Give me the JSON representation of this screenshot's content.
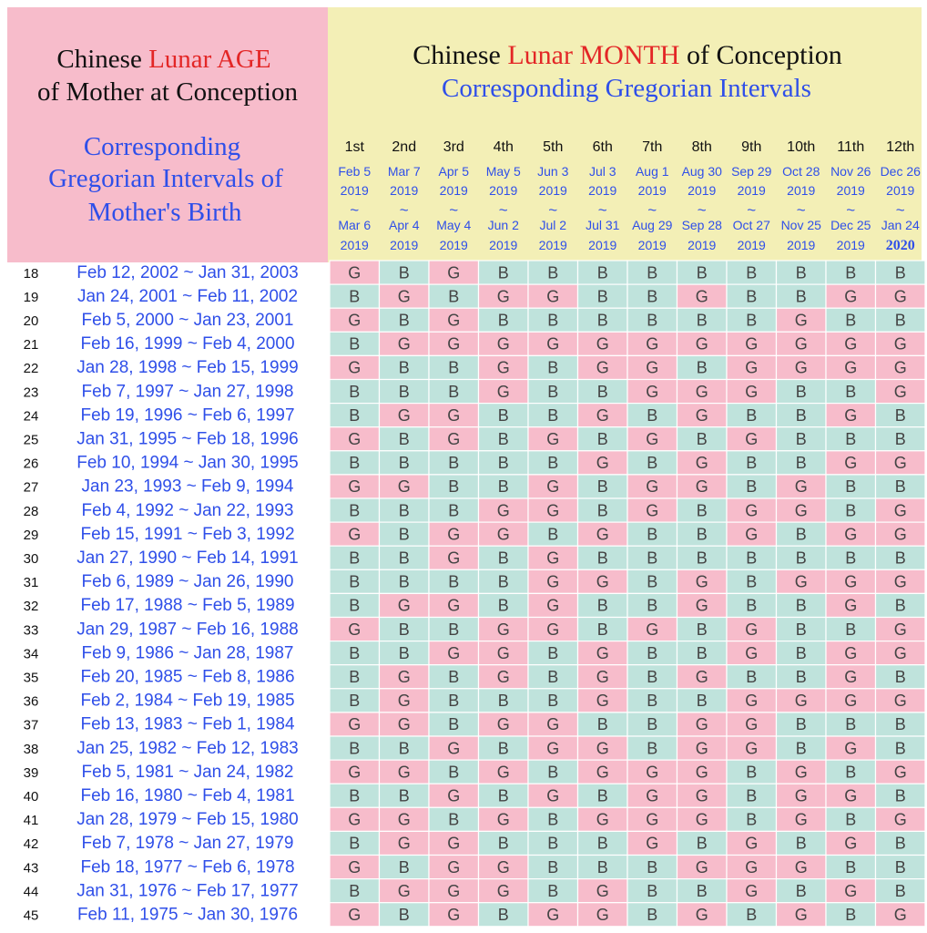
{
  "colors": {
    "left_bg": "#f7bccb",
    "header_bg": "#f3efb6",
    "boy_bg": "#bfe3dc",
    "girl_bg": "#f7bccb",
    "blue_text": "#2f4fe9",
    "red_text": "#e32626",
    "black_text": "#111111",
    "letter_text": "#444444"
  },
  "left_title": {
    "line1_a": "Chinese ",
    "line1_b": "Lunar AGE",
    "line2": "of Mother at Conception"
  },
  "left_subtitle": [
    "Corresponding",
    "Gregorian Intervals of",
    "Mother's Birth"
  ],
  "right_title": {
    "line1_a": "Chinese ",
    "line1_b": "Lunar MONTH",
    "line1_c": " of Conception",
    "line2": "Corresponding Gregorian Intervals"
  },
  "chart_data": {
    "type": "table",
    "months": [
      {
        "label": "1st",
        "start": [
          "Feb 5",
          "2019"
        ],
        "end": [
          "Mar 6",
          "2019"
        ]
      },
      {
        "label": "2nd",
        "start": [
          "Mar 7",
          "2019"
        ],
        "end": [
          "Apr 4",
          "2019"
        ]
      },
      {
        "label": "3rd",
        "start": [
          "Apr 5",
          "2019"
        ],
        "end": [
          "May 4",
          "2019"
        ]
      },
      {
        "label": "4th",
        "start": [
          "May 5",
          "2019"
        ],
        "end": [
          "Jun 2",
          "2019"
        ]
      },
      {
        "label": "5th",
        "start": [
          "Jun 3",
          "2019"
        ],
        "end": [
          "Jul 2",
          "2019"
        ]
      },
      {
        "label": "6th",
        "start": [
          "Jul 3",
          "2019"
        ],
        "end": [
          "Jul 31",
          "2019"
        ]
      },
      {
        "label": "7th",
        "start": [
          "Aug 1",
          "2019"
        ],
        "end": [
          "Aug 29",
          "2019"
        ]
      },
      {
        "label": "8th",
        "start": [
          "Aug 30",
          "2019"
        ],
        "end": [
          "Sep 28",
          "2019"
        ]
      },
      {
        "label": "9th",
        "start": [
          "Sep 29",
          "2019"
        ],
        "end": [
          "Oct 27",
          "2019"
        ]
      },
      {
        "label": "10th",
        "start": [
          "Oct 28",
          "2019"
        ],
        "end": [
          "Nov 25",
          "2019"
        ]
      },
      {
        "label": "11th",
        "start": [
          "Nov 26",
          "2019"
        ],
        "end": [
          "Dec 25",
          "2019"
        ]
      },
      {
        "label": "12th",
        "start": [
          "Dec 26",
          "2019"
        ],
        "end": [
          "Jan 24",
          "2020"
        ]
      }
    ],
    "separator": "~",
    "rows": [
      {
        "age": "18",
        "interval": "Feb 12, 2002 ~ Jan 31, 2003",
        "values": [
          "G",
          "B",
          "G",
          "B",
          "B",
          "B",
          "B",
          "B",
          "B",
          "B",
          "B",
          "B"
        ]
      },
      {
        "age": "19",
        "interval": "Jan 24, 2001 ~ Feb 11, 2002",
        "values": [
          "B",
          "G",
          "B",
          "G",
          "G",
          "B",
          "B",
          "G",
          "B",
          "B",
          "G",
          "G"
        ]
      },
      {
        "age": "20",
        "interval": "Feb 5, 2000 ~ Jan 23, 2001",
        "values": [
          "G",
          "B",
          "G",
          "B",
          "B",
          "B",
          "B",
          "B",
          "B",
          "G",
          "B",
          "B"
        ]
      },
      {
        "age": "21",
        "interval": "Feb 16, 1999 ~ Feb 4, 2000",
        "values": [
          "B",
          "G",
          "G",
          "G",
          "G",
          "G",
          "G",
          "G",
          "G",
          "G",
          "G",
          "G"
        ]
      },
      {
        "age": "22",
        "interval": "Jan 28, 1998 ~ Feb 15, 1999",
        "values": [
          "G",
          "B",
          "B",
          "G",
          "B",
          "G",
          "G",
          "B",
          "G",
          "G",
          "G",
          "G"
        ]
      },
      {
        "age": "23",
        "interval": "Feb 7, 1997 ~ Jan 27, 1998",
        "values": [
          "B",
          "B",
          "B",
          "G",
          "B",
          "B",
          "G",
          "G",
          "G",
          "B",
          "B",
          "G"
        ]
      },
      {
        "age": "24",
        "interval": "Feb 19, 1996 ~ Feb 6, 1997",
        "values": [
          "B",
          "G",
          "G",
          "B",
          "B",
          "G",
          "B",
          "G",
          "B",
          "B",
          "G",
          "B"
        ]
      },
      {
        "age": "25",
        "interval": "Jan 31, 1995 ~ Feb 18, 1996",
        "values": [
          "G",
          "B",
          "G",
          "B",
          "G",
          "B",
          "G",
          "B",
          "G",
          "B",
          "B",
          "B"
        ]
      },
      {
        "age": "26",
        "interval": "Feb 10, 1994 ~ Jan 30, 1995",
        "values": [
          "B",
          "B",
          "B",
          "B",
          "B",
          "G",
          "B",
          "G",
          "B",
          "B",
          "G",
          "G"
        ]
      },
      {
        "age": "27",
        "interval": "Jan 23, 1993 ~ Feb 9, 1994",
        "values": [
          "G",
          "G",
          "B",
          "B",
          "G",
          "B",
          "G",
          "G",
          "B",
          "G",
          "B",
          "B"
        ]
      },
      {
        "age": "28",
        "interval": "Feb 4, 1992 ~ Jan 22, 1993",
        "values": [
          "B",
          "B",
          "B",
          "G",
          "G",
          "B",
          "G",
          "B",
          "G",
          "G",
          "B",
          "G"
        ]
      },
      {
        "age": "29",
        "interval": "Feb 15, 1991 ~ Feb 3, 1992",
        "values": [
          "G",
          "B",
          "G",
          "G",
          "B",
          "G",
          "B",
          "B",
          "G",
          "B",
          "G",
          "G"
        ]
      },
      {
        "age": "30",
        "interval": "Jan 27, 1990 ~ Feb 14, 1991",
        "values": [
          "B",
          "B",
          "G",
          "B",
          "G",
          "B",
          "B",
          "B",
          "B",
          "B",
          "B",
          "B"
        ]
      },
      {
        "age": "31",
        "interval": "Feb 6, 1989 ~ Jan 26, 1990",
        "values": [
          "B",
          "B",
          "B",
          "B",
          "G",
          "G",
          "B",
          "G",
          "B",
          "G",
          "G",
          "G"
        ]
      },
      {
        "age": "32",
        "interval": "Feb 17, 1988 ~ Feb 5, 1989",
        "values": [
          "B",
          "G",
          "G",
          "B",
          "G",
          "B",
          "B",
          "G",
          "B",
          "B",
          "G",
          "B"
        ]
      },
      {
        "age": "33",
        "interval": "Jan 29, 1987 ~ Feb 16, 1988",
        "values": [
          "G",
          "B",
          "B",
          "G",
          "G",
          "B",
          "G",
          "B",
          "G",
          "B",
          "B",
          "G"
        ]
      },
      {
        "age": "34",
        "interval": "Feb 9, 1986 ~ Jan 28, 1987",
        "values": [
          "B",
          "B",
          "G",
          "G",
          "B",
          "G",
          "B",
          "B",
          "G",
          "B",
          "G",
          "G"
        ]
      },
      {
        "age": "35",
        "interval": "Feb 20, 1985 ~ Feb 8, 1986",
        "values": [
          "B",
          "G",
          "B",
          "G",
          "B",
          "G",
          "B",
          "G",
          "B",
          "B",
          "G",
          "B"
        ]
      },
      {
        "age": "36",
        "interval": "Feb 2, 1984 ~ Feb 19, 1985",
        "values": [
          "B",
          "G",
          "B",
          "B",
          "B",
          "G",
          "B",
          "B",
          "G",
          "G",
          "G",
          "G"
        ]
      },
      {
        "age": "37",
        "interval": "Feb 13, 1983 ~ Feb 1, 1984",
        "values": [
          "G",
          "G",
          "B",
          "G",
          "G",
          "B",
          "B",
          "G",
          "G",
          "B",
          "B",
          "B"
        ]
      },
      {
        "age": "38",
        "interval": "Jan 25, 1982 ~ Feb 12, 1983",
        "values": [
          "B",
          "B",
          "G",
          "B",
          "G",
          "G",
          "B",
          "G",
          "G",
          "B",
          "G",
          "B"
        ]
      },
      {
        "age": "39",
        "interval": "Feb 5, 1981 ~ Jan 24, 1982",
        "values": [
          "G",
          "G",
          "B",
          "G",
          "B",
          "G",
          "G",
          "G",
          "B",
          "G",
          "B",
          "G"
        ]
      },
      {
        "age": "40",
        "interval": "Feb 16, 1980 ~ Feb 4, 1981",
        "values": [
          "B",
          "B",
          "G",
          "B",
          "G",
          "B",
          "G",
          "G",
          "B",
          "G",
          "G",
          "B"
        ]
      },
      {
        "age": "41",
        "interval": "Jan 28, 1979 ~ Feb 15, 1980",
        "values": [
          "G",
          "G",
          "B",
          "G",
          "B",
          "G",
          "G",
          "G",
          "B",
          "G",
          "B",
          "G"
        ]
      },
      {
        "age": "42",
        "interval": "Feb 7, 1978 ~ Jan 27, 1979",
        "values": [
          "B",
          "G",
          "G",
          "B",
          "B",
          "B",
          "G",
          "B",
          "G",
          "B",
          "G",
          "B"
        ]
      },
      {
        "age": "43",
        "interval": "Feb 18, 1977 ~ Feb 6, 1978",
        "values": [
          "G",
          "B",
          "G",
          "G",
          "B",
          "B",
          "B",
          "G",
          "G",
          "G",
          "B",
          "B"
        ]
      },
      {
        "age": "44",
        "interval": "Jan 31, 1976 ~ Feb 17, 1977",
        "values": [
          "B",
          "G",
          "G",
          "G",
          "B",
          "G",
          "B",
          "B",
          "G",
          "B",
          "G",
          "B"
        ]
      },
      {
        "age": "45",
        "interval": "Feb 11, 1975 ~ Jan 30, 1976",
        "values": [
          "G",
          "B",
          "G",
          "B",
          "G",
          "G",
          "B",
          "G",
          "B",
          "G",
          "B",
          "G"
        ]
      }
    ]
  }
}
